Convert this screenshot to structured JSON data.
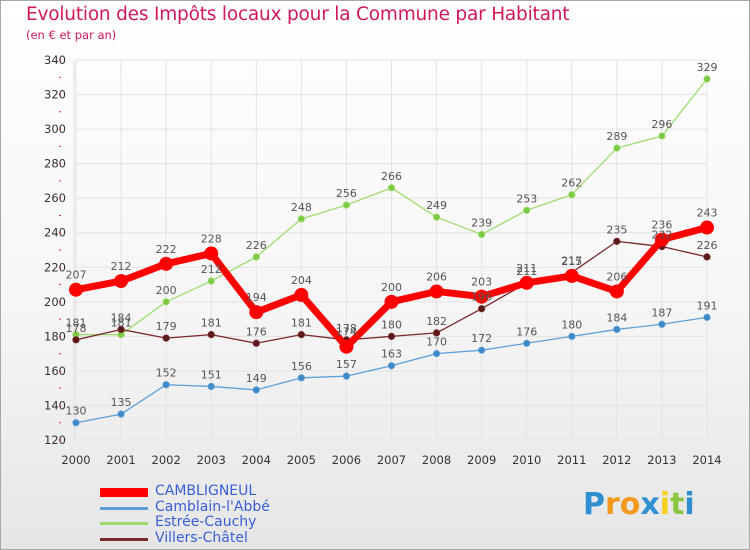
{
  "header": {
    "title": "Evolution des Impôts locaux pour la Commune par Habitant",
    "subtitle": "(en € et par an)"
  },
  "colors": {
    "title": "#d0185a",
    "legend_text": "#3a5ed6",
    "grid": "#e3e3e3",
    "axis_text": "#333333",
    "label_text": "#555555"
  },
  "chart_data": {
    "type": "line",
    "title": "Evolution des Impôts locaux pour la Commune par Habitant",
    "subtitle": "(en € et par an)",
    "xlabel": "",
    "ylabel": "",
    "x": [
      "2000",
      "2001",
      "2002",
      "2003",
      "2004",
      "2005",
      "2006",
      "2007",
      "2008",
      "2009",
      "2010",
      "2011",
      "2012",
      "2013",
      "2014"
    ],
    "ylim": [
      120,
      340
    ],
    "yticks": [
      120,
      140,
      160,
      180,
      200,
      220,
      240,
      260,
      280,
      300,
      320,
      340
    ],
    "grid": true,
    "legend_position": "bottom-left",
    "series": [
      {
        "name": "CAMBLIGNEUL",
        "color": "#ff0000",
        "dot": "#e00000",
        "width": "thick",
        "values": [
          207,
          212,
          222,
          228,
          194,
          204,
          174,
          200,
          206,
          203,
          211,
          215,
          206,
          236,
          243
        ]
      },
      {
        "name": "Camblain-l'Abbé",
        "color": "#5e9fd6",
        "dot": "#3d8acb",
        "width": "thin",
        "values": [
          130,
          135,
          152,
          151,
          149,
          156,
          157,
          163,
          170,
          172,
          176,
          180,
          184,
          187,
          191
        ]
      },
      {
        "name": "Estrée-Cauchy",
        "color": "#9edc6e",
        "dot": "#7cc943",
        "width": "thin",
        "values": [
          181,
          181,
          200,
          212,
          226,
          248,
          256,
          266,
          249,
          239,
          253,
          262,
          289,
          296,
          329
        ]
      },
      {
        "name": "Villers-Châtel",
        "color": "#7a2a2a",
        "dot": "#5a1a1a",
        "width": "thin",
        "values": [
          178,
          184,
          179,
          181,
          176,
          181,
          178,
          180,
          182,
          196,
          211,
          217,
          235,
          232,
          226
        ]
      }
    ]
  },
  "legend": {
    "items": [
      "CAMBLIGNEUL",
      "Camblain-l'Abbé",
      "Estrée-Cauchy",
      "Villers-Châtel"
    ]
  },
  "logo": {
    "letters": [
      "P",
      "r",
      "o",
      "x",
      "i",
      "t",
      "i"
    ],
    "colors": [
      "#2f8fd0",
      "#f39a1e",
      "#f39a1e",
      "#2f8fd0",
      "#f5d11a",
      "#8cc63f",
      "#2f8fd0"
    ]
  }
}
